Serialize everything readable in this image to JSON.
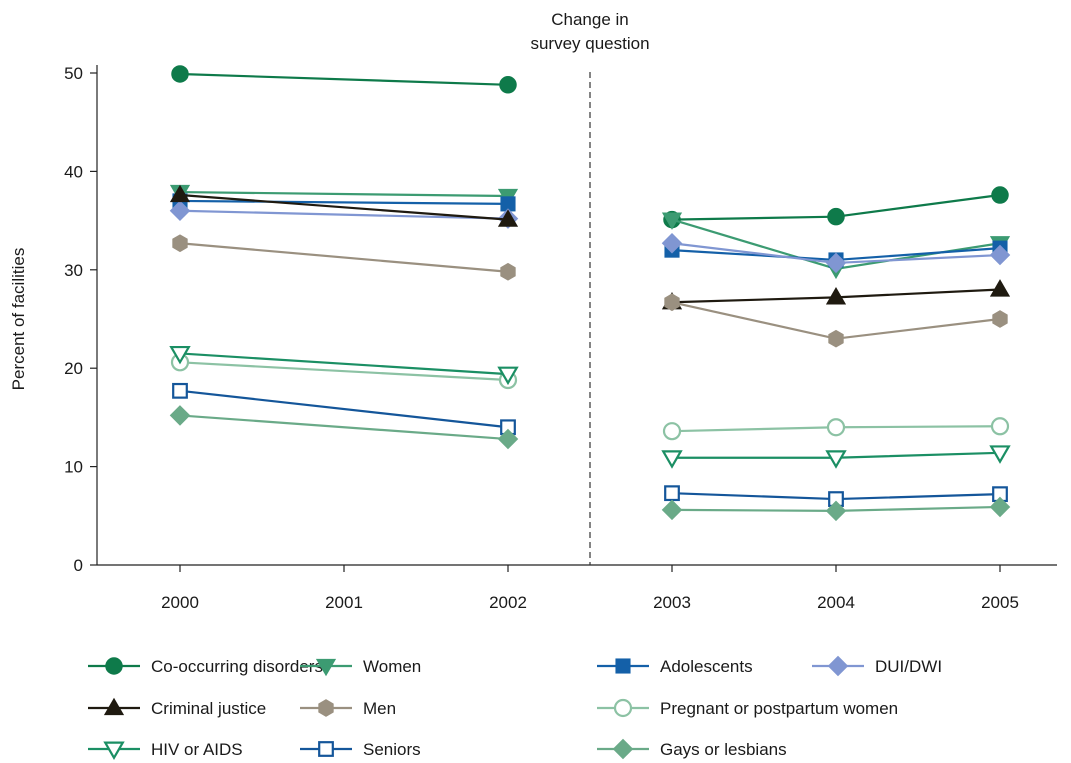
{
  "chart_data": {
    "type": "line",
    "title": "",
    "xlabel": "",
    "ylabel": "Percent of facilities",
    "ylim": [
      0,
      50
    ],
    "yticks": [
      0,
      10,
      20,
      30,
      40,
      50
    ],
    "xticks": [
      "2000",
      "2001",
      "2002",
      "2003",
      "2004",
      "2005"
    ],
    "grid": false,
    "legend_position": "bottom",
    "annotations": [
      {
        "text_lines": [
          "Change in",
          "survey question"
        ],
        "x_between": [
          "2002",
          "2003"
        ],
        "style": "dashed-vertical-line"
      }
    ],
    "series": [
      {
        "name": "Co-occurring disorders",
        "color": "#0e7a4a",
        "marker": "circle",
        "filled": true,
        "segments": [
          {
            "x": [
              "2000",
              "2002"
            ],
            "values": [
              49.9,
              48.8
            ]
          },
          {
            "x": [
              "2003",
              "2004",
              "2005"
            ],
            "values": [
              35.1,
              35.4,
              37.6
            ]
          }
        ]
      },
      {
        "name": "Women",
        "color": "#3c9b72",
        "marker": "triangle-down",
        "filled": true,
        "segments": [
          {
            "x": [
              "2000",
              "2002"
            ],
            "values": [
              37.9,
              37.5
            ]
          },
          {
            "x": [
              "2003",
              "2004",
              "2005"
            ],
            "values": [
              35.1,
              30.1,
              32.7
            ]
          }
        ]
      },
      {
        "name": "Adolescents",
        "color": "#1460a8",
        "marker": "square",
        "filled": true,
        "segments": [
          {
            "x": [
              "2000",
              "2002"
            ],
            "values": [
              37.0,
              36.7
            ]
          },
          {
            "x": [
              "2003",
              "2004",
              "2005"
            ],
            "values": [
              32.0,
              31.0,
              32.2
            ]
          }
        ]
      },
      {
        "name": "DUI/DWI",
        "color": "#8096d2",
        "marker": "diamond",
        "filled": true,
        "segments": [
          {
            "x": [
              "2000",
              "2002"
            ],
            "values": [
              36.0,
              35.2
            ]
          },
          {
            "x": [
              "2003",
              "2004",
              "2005"
            ],
            "values": [
              32.7,
              30.7,
              31.5
            ]
          }
        ]
      },
      {
        "name": "Criminal justice",
        "color": "#1f1a10",
        "marker": "triangle-up",
        "filled": true,
        "segments": [
          {
            "x": [
              "2000",
              "2002"
            ],
            "values": [
              37.6,
              35.1
            ]
          },
          {
            "x": [
              "2003",
              "2004",
              "2005"
            ],
            "values": [
              26.7,
              27.2,
              28.0
            ]
          }
        ]
      },
      {
        "name": "Men",
        "color": "#9a9080",
        "marker": "hexagon",
        "filled": true,
        "segments": [
          {
            "x": [
              "2000",
              "2002"
            ],
            "values": [
              32.7,
              29.8
            ]
          },
          {
            "x": [
              "2003",
              "2004",
              "2005"
            ],
            "values": [
              26.7,
              23.0,
              25.0
            ]
          }
        ]
      },
      {
        "name": "Pregnant or postpartum women",
        "color": "#8cc2a4",
        "marker": "circle",
        "filled": false,
        "segments": [
          {
            "x": [
              "2000",
              "2002"
            ],
            "values": [
              20.6,
              18.8
            ]
          },
          {
            "x": [
              "2003",
              "2004",
              "2005"
            ],
            "values": [
              13.6,
              14.0,
              14.1
            ]
          }
        ]
      },
      {
        "name": "HIV or AIDS",
        "color": "#1b8f64",
        "marker": "triangle-down",
        "filled": false,
        "segments": [
          {
            "x": [
              "2000",
              "2002"
            ],
            "values": [
              21.5,
              19.4
            ]
          },
          {
            "x": [
              "2003",
              "2004",
              "2005"
            ],
            "values": [
              10.9,
              10.9,
              11.4
            ]
          }
        ]
      },
      {
        "name": "Seniors",
        "color": "#14569a",
        "marker": "square",
        "filled": false,
        "segments": [
          {
            "x": [
              "2000",
              "2002"
            ],
            "values": [
              17.7,
              14.0
            ]
          },
          {
            "x": [
              "2003",
              "2004",
              "2005"
            ],
            "values": [
              7.3,
              6.7,
              7.2
            ]
          }
        ]
      },
      {
        "name": "Gays or lesbians",
        "color": "#6aaa88",
        "marker": "diamond",
        "filled": true,
        "segments": [
          {
            "x": [
              "2000",
              "2002"
            ],
            "values": [
              15.2,
              12.8
            ]
          },
          {
            "x": [
              "2003",
              "2004",
              "2005"
            ],
            "values": [
              5.6,
              5.5,
              5.9
            ]
          }
        ]
      }
    ],
    "legend_rows": [
      [
        "Co-occurring disorders",
        "Women",
        "Adolescents",
        "DUI/DWI"
      ],
      [
        "Criminal justice",
        "Men",
        "Pregnant or postpartum women"
      ],
      [
        "HIV or AIDS",
        "Seniors",
        "Gays or lesbians"
      ]
    ]
  }
}
